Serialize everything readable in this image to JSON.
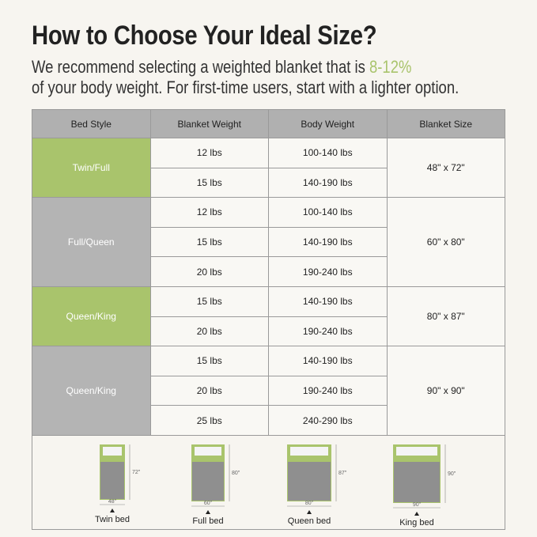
{
  "header": {
    "title": "How to Choose Your Ideal Size?",
    "subtitle_start": "We recommend selecting a weighted blanket that is",
    "subtitle_highlight": "8-12%",
    "subtitle_end": "of your body weight. For first-time users, start with a lighter option."
  },
  "table": {
    "headers": [
      "Bed Style",
      "Blanket Weight",
      "Body Weight",
      "Blanket Size"
    ],
    "groups": [
      {
        "bed_style": "Twin/Full",
        "blanket_size": "48\" x 72\"",
        "color": "#a9c46c",
        "rows": [
          [
            "12 lbs",
            "100-140 lbs"
          ],
          [
            "15 lbs",
            "140-190 lbs"
          ]
        ]
      },
      {
        "bed_style": "Full/Queen",
        "blanket_size": "60\" x 80\"",
        "color": "#b4b4b4",
        "rows": [
          [
            "12 lbs",
            "100-140 lbs"
          ],
          [
            "15 lbs",
            "140-190 lbs"
          ],
          [
            "20 lbs",
            "190-240 lbs"
          ]
        ]
      },
      {
        "bed_style": "Queen/King",
        "blanket_size": "80\" x 87\"",
        "color": "#a9c46c",
        "rows": [
          [
            "15 lbs",
            "140-190 lbs"
          ],
          [
            "20 lbs",
            "190-240 lbs"
          ]
        ]
      },
      {
        "bed_style": "Queen/King",
        "blanket_size": "90\" x 90\"",
        "color": "#b4b4b4",
        "rows": [
          [
            "15 lbs",
            "140-190 lbs"
          ],
          [
            "20 lbs",
            "190-240 lbs"
          ],
          [
            "25 lbs",
            "240-290 lbs"
          ]
        ]
      }
    ]
  },
  "beds": [
    {
      "label": "Twin bed",
      "width": "48\"",
      "length": "72\""
    },
    {
      "label": "Full bed",
      "width": "60\"",
      "length": "80\""
    },
    {
      "label": "Queen bed",
      "width": "80\"",
      "length": "87\""
    },
    {
      "label": "King bed",
      "width": "90\"",
      "length": "90\""
    }
  ]
}
